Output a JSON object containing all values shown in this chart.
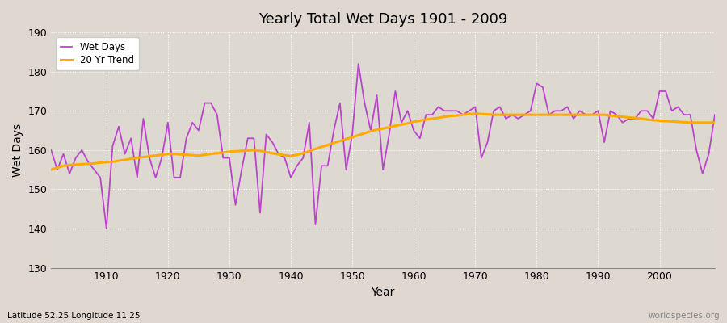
{
  "title": "Yearly Total Wet Days 1901 - 2009",
  "xlabel": "Year",
  "ylabel": "Wet Days",
  "subtitle": "Latitude 52.25 Longitude 11.25",
  "watermark": "worldspecies.org",
  "ylim": [
    130,
    190
  ],
  "yticks": [
    130,
    140,
    150,
    160,
    170,
    180,
    190
  ],
  "wet_days_color": "#bb44cc",
  "trend_color": "#ffaa00",
  "fig_bg_color": "#e0d8d0",
  "plot_bg_color": "#ddd8d0",
  "years": [
    1901,
    1902,
    1903,
    1904,
    1905,
    1906,
    1907,
    1908,
    1909,
    1910,
    1911,
    1912,
    1913,
    1914,
    1915,
    1916,
    1917,
    1918,
    1919,
    1920,
    1921,
    1922,
    1923,
    1924,
    1925,
    1926,
    1927,
    1928,
    1929,
    1930,
    1931,
    1932,
    1933,
    1934,
    1935,
    1936,
    1937,
    1938,
    1939,
    1940,
    1941,
    1942,
    1943,
    1944,
    1945,
    1946,
    1947,
    1948,
    1949,
    1950,
    1951,
    1952,
    1953,
    1954,
    1955,
    1956,
    1957,
    1958,
    1959,
    1960,
    1961,
    1962,
    1963,
    1964,
    1965,
    1966,
    1967,
    1968,
    1969,
    1970,
    1971,
    1972,
    1973,
    1974,
    1975,
    1976,
    1977,
    1978,
    1979,
    1980,
    1981,
    1982,
    1983,
    1984,
    1985,
    1986,
    1987,
    1988,
    1989,
    1990,
    1991,
    1992,
    1993,
    1994,
    1995,
    1996,
    1997,
    1998,
    1999,
    2000,
    2001,
    2002,
    2003,
    2004,
    2005,
    2006,
    2007,
    2008,
    2009
  ],
  "wet_days": [
    160,
    155,
    159,
    154,
    158,
    160,
    157,
    155,
    153,
    140,
    161,
    166,
    159,
    163,
    153,
    168,
    158,
    153,
    158,
    167,
    153,
    153,
    163,
    167,
    165,
    172,
    172,
    169,
    158,
    158,
    146,
    155,
    163,
    163,
    144,
    164,
    162,
    159,
    158,
    153,
    156,
    158,
    167,
    141,
    156,
    156,
    165,
    172,
    155,
    164,
    182,
    172,
    165,
    174,
    155,
    164,
    175,
    167,
    170,
    165,
    163,
    169,
    169,
    171,
    170,
    170,
    170,
    169,
    170,
    171,
    158,
    162,
    170,
    171,
    168,
    169,
    168,
    169,
    170,
    177,
    176,
    169,
    170,
    170,
    171,
    168,
    170,
    169,
    169,
    170,
    162,
    170,
    169,
    167,
    168,
    168,
    170,
    170,
    168,
    175,
    175,
    170,
    171,
    169,
    169,
    160,
    154,
    159,
    169
  ],
  "trend": [
    155.0,
    155.5,
    156.0,
    156.2,
    156.3,
    156.4,
    156.5,
    156.6,
    156.8,
    156.9,
    157.0,
    157.3,
    157.5,
    157.8,
    158.0,
    158.2,
    158.4,
    158.6,
    158.8,
    159.0,
    159.0,
    158.9,
    158.8,
    158.7,
    158.6,
    158.8,
    159.0,
    159.2,
    159.4,
    159.6,
    159.7,
    159.8,
    159.9,
    160.0,
    159.8,
    159.5,
    159.2,
    158.9,
    158.7,
    158.5,
    158.8,
    159.2,
    159.7,
    160.3,
    160.8,
    161.3,
    161.8,
    162.3,
    162.8,
    163.3,
    163.8,
    164.3,
    164.8,
    165.2,
    165.5,
    165.8,
    166.2,
    166.5,
    166.8,
    167.2,
    167.5,
    167.8,
    168.0,
    168.2,
    168.5,
    168.7,
    168.8,
    169.0,
    169.2,
    169.3,
    169.2,
    169.1,
    169.0,
    169.0,
    169.0,
    169.0,
    169.0,
    169.0,
    169.0,
    169.0,
    169.0,
    169.0,
    169.0,
    169.0,
    169.0,
    169.0,
    169.0,
    169.0,
    169.0,
    169.0,
    169.0,
    168.8,
    168.6,
    168.5,
    168.3,
    168.2,
    168.0,
    167.8,
    167.6,
    167.5,
    167.4,
    167.3,
    167.2,
    167.1,
    167.0,
    167.0,
    167.0,
    167.0,
    167.0
  ]
}
